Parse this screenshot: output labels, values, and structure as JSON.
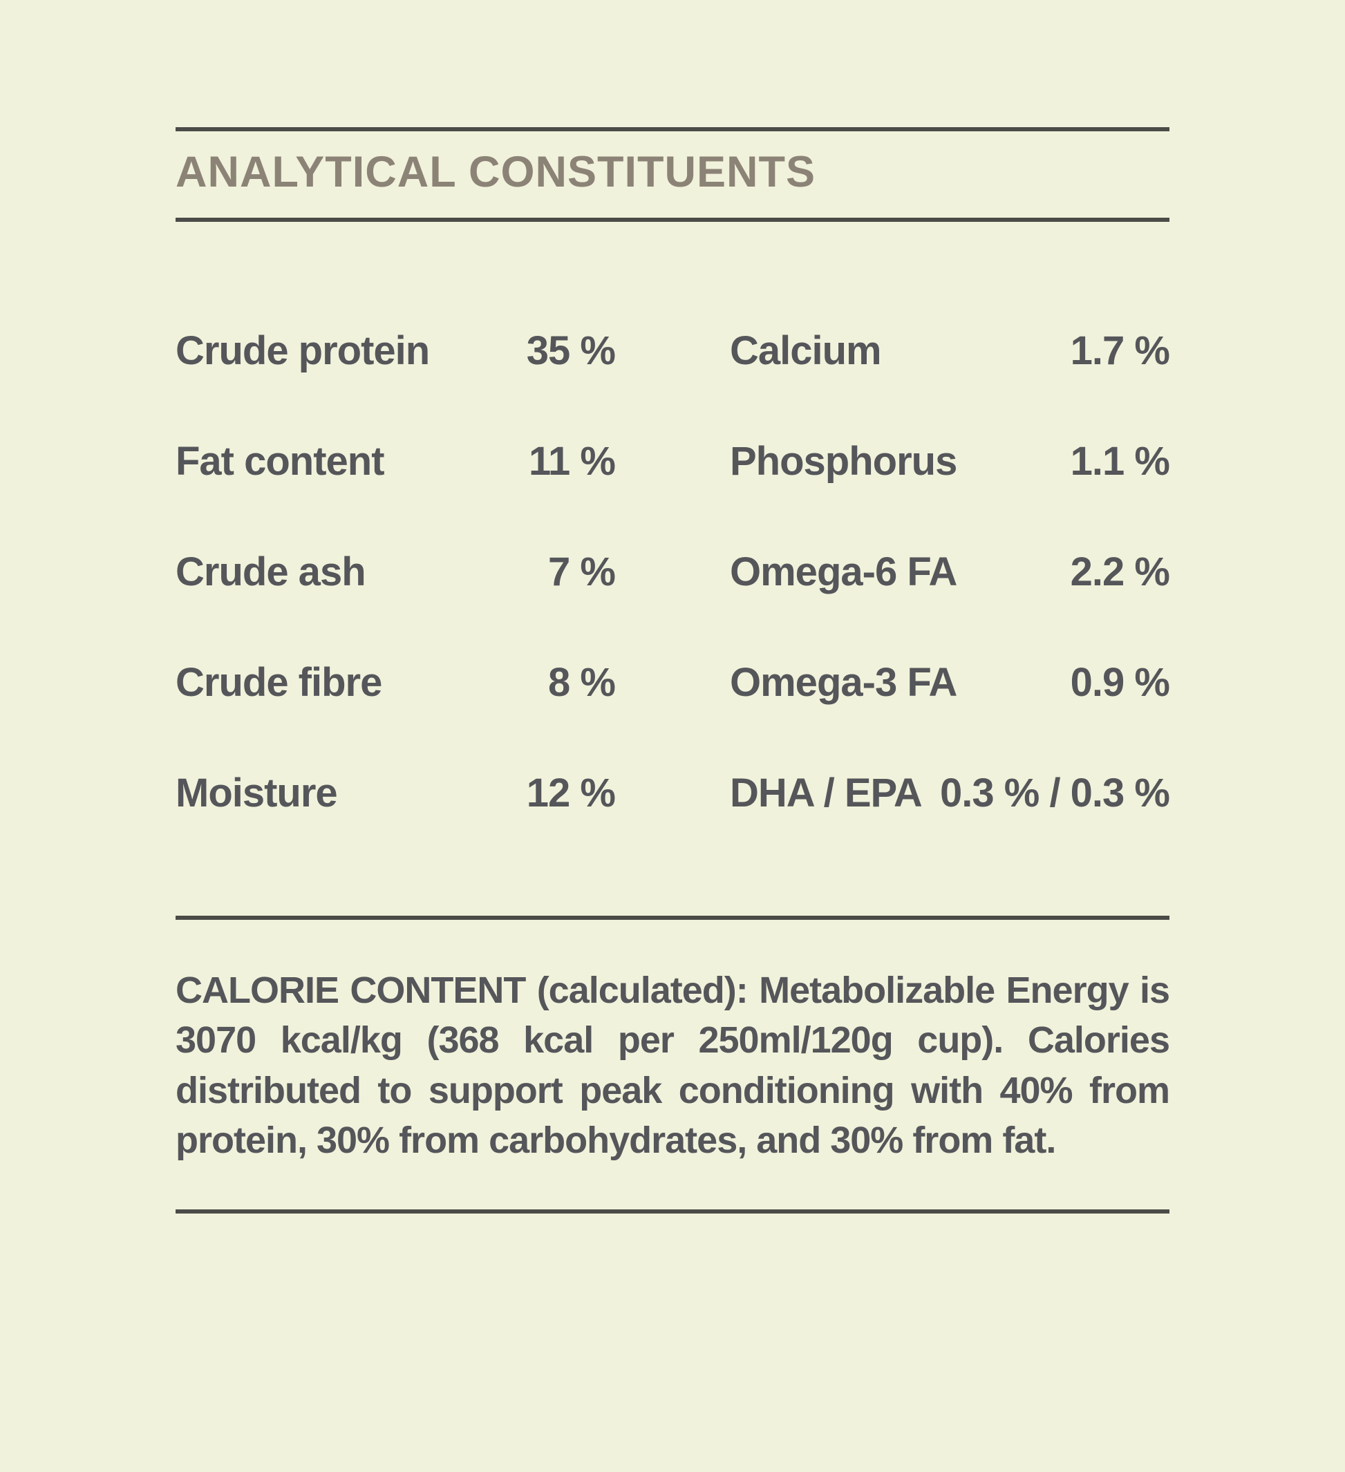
{
  "page": {
    "background_color": "#F1F2DB",
    "text_color": "#55565A",
    "heading_color": "#8C8377",
    "rule_color": "#4B4C48"
  },
  "header": {
    "title": "ANALYTICAL CONSTITUENTS"
  },
  "analysis_table": {
    "left_column": [
      {
        "label": "Crude protein",
        "value": "35 %"
      },
      {
        "label": "Fat content",
        "value": "11 %"
      },
      {
        "label": "Crude ash",
        "value": "7 %"
      },
      {
        "label": "Crude fibre",
        "value": "8 %"
      },
      {
        "label": "Moisture",
        "value": "12 %"
      }
    ],
    "right_column": [
      {
        "label": "Calcium",
        "value": "1.7 %"
      },
      {
        "label": "Phosphorus",
        "value": "1.1 %"
      },
      {
        "label": "Omega-6 FA",
        "value": "2.2 %"
      },
      {
        "label": "Omega-3 FA",
        "value": "0.9 %"
      },
      {
        "label": "DHA / EPA",
        "value": "0.3 % / 0.3 %"
      }
    ]
  },
  "calorie_info": {
    "text": "CALORIE CONTENT (calculated): Metabolizable Energy is 3070 kcal/kg (368 kcal per 250ml/120g cup). Calories distributed to support peak conditioning with 40% from protein, 30% from carbohydrates, and 30% from fat."
  }
}
